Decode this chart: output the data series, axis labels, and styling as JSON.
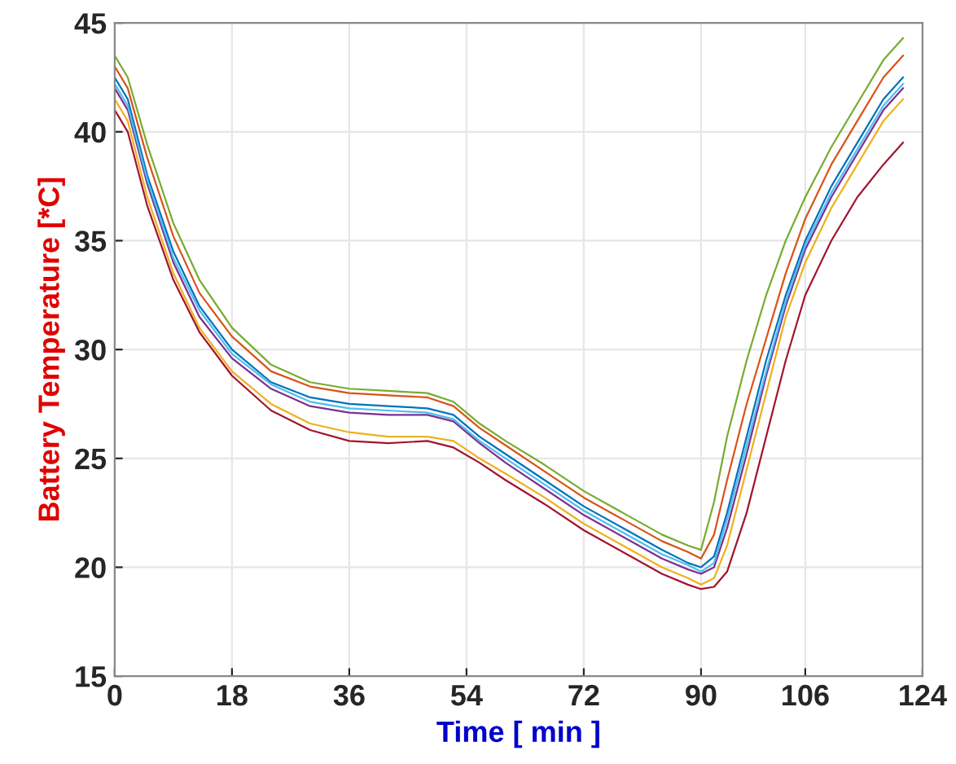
{
  "chart_data": {
    "type": "line",
    "xlabel": "Time [ min ]",
    "ylabel": "Battery Temperature [*C]",
    "xlim": [
      0,
      124
    ],
    "ylim": [
      15,
      45
    ],
    "xticks": [
      0,
      18,
      36,
      54,
      72,
      90,
      106,
      124
    ],
    "yticks": [
      15,
      20,
      25,
      30,
      35,
      40,
      45
    ],
    "grid": true,
    "line_style": "solid",
    "marker": "none",
    "x": [
      0,
      2,
      5,
      9,
      13,
      18,
      24,
      30,
      36,
      42,
      48,
      52,
      56,
      60,
      66,
      72,
      78,
      84,
      88,
      90,
      92,
      94,
      97,
      100,
      103,
      106,
      110,
      114,
      118,
      121
    ],
    "series": [
      {
        "color": "#0072bd",
        "values": [
          42.5,
          41.5,
          38,
          34.5,
          32,
          30,
          28.5,
          27.8,
          27.5,
          27.4,
          27.3,
          27,
          26,
          25.2,
          24,
          22.8,
          21.8,
          20.8,
          20.2,
          20,
          20.5,
          22.5,
          26,
          29.5,
          32.5,
          35,
          37.5,
          39.5,
          41.5,
          42.5
        ]
      },
      {
        "color": "#d95319",
        "values": [
          43,
          42,
          38.8,
          35.2,
          32.6,
          30.6,
          29,
          28.3,
          28,
          27.9,
          27.8,
          27.4,
          26.4,
          25.6,
          24.4,
          23.2,
          22.2,
          21.2,
          20.7,
          20.4,
          21.5,
          24,
          27.5,
          30.5,
          33.5,
          36,
          38.5,
          40.5,
          42.5,
          43.5
        ]
      },
      {
        "color": "#edb120",
        "values": [
          41.5,
          40.5,
          37,
          33.5,
          31,
          29,
          27.5,
          26.6,
          26.2,
          26,
          26,
          25.8,
          25,
          24.3,
          23.2,
          22,
          21,
          20,
          19.5,
          19.2,
          19.5,
          21,
          24.5,
          28,
          31.5,
          34,
          36.5,
          38.5,
          40.5,
          41.5
        ]
      },
      {
        "color": "#7e2f8e",
        "values": [
          42,
          41,
          37.6,
          34,
          31.5,
          29.6,
          28.2,
          27.4,
          27.1,
          27,
          27,
          26.7,
          25.7,
          24.8,
          23.6,
          22.4,
          21.4,
          20.4,
          19.9,
          19.7,
          20,
          21.8,
          25.2,
          28.8,
          32,
          34.6,
          37,
          39,
          41,
          42
        ]
      },
      {
        "color": "#77ac30",
        "values": [
          43.5,
          42.5,
          39.4,
          35.8,
          33.2,
          31,
          29.3,
          28.5,
          28.2,
          28.1,
          28,
          27.6,
          26.6,
          25.8,
          24.7,
          23.5,
          22.5,
          21.5,
          21,
          20.8,
          23,
          26,
          29.5,
          32.5,
          35,
          37,
          39.3,
          41.3,
          43.3,
          44.3
        ]
      },
      {
        "color": "#4dbeee",
        "values": [
          42.2,
          41.2,
          37.8,
          34.2,
          31.8,
          29.8,
          28.4,
          27.6,
          27.3,
          27.2,
          27.1,
          26.8,
          25.8,
          25,
          23.8,
          22.6,
          21.6,
          20.6,
          20.1,
          19.8,
          20.2,
          22.2,
          25.6,
          29,
          32.2,
          34.8,
          37.2,
          39.2,
          41.2,
          42.2
        ]
      },
      {
        "color": "#a2142f",
        "values": [
          41,
          40,
          36.6,
          33.2,
          30.8,
          28.8,
          27.2,
          26.3,
          25.8,
          25.7,
          25.8,
          25.5,
          24.8,
          24,
          22.9,
          21.7,
          20.7,
          19.7,
          19.2,
          19,
          19.1,
          19.8,
          22.5,
          26,
          29.5,
          32.5,
          35,
          37,
          38.5,
          39.5
        ]
      }
    ]
  }
}
